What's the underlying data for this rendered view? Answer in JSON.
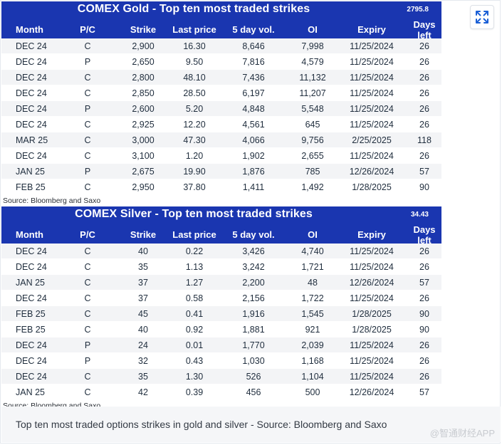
{
  "gold": {
    "title": "COMEX Gold - Top ten most traded strikes",
    "price": "2795.8",
    "headers": [
      "Month",
      "P/C",
      "Strike",
      "Last price",
      "5 day vol.",
      "OI",
      "Expiry",
      "Days left"
    ],
    "rows": [
      [
        "DEC 24",
        "C",
        "2,900",
        "16.30",
        "8,646",
        "7,998",
        "11/25/2024",
        "26"
      ],
      [
        "DEC 24",
        "P",
        "2,650",
        "9.50",
        "7,816",
        "4,579",
        "11/25/2024",
        "26"
      ],
      [
        "DEC 24",
        "C",
        "2,800",
        "48.10",
        "7,436",
        "11,132",
        "11/25/2024",
        "26"
      ],
      [
        "DEC 24",
        "C",
        "2,850",
        "28.50",
        "6,197",
        "11,207",
        "11/25/2024",
        "26"
      ],
      [
        "DEC 24",
        "P",
        "2,600",
        "5.20",
        "4,848",
        "5,548",
        "11/25/2024",
        "26"
      ],
      [
        "DEC 24",
        "C",
        "2,925",
        "12.20",
        "4,561",
        "645",
        "11/25/2024",
        "26"
      ],
      [
        "MAR 25",
        "C",
        "3,000",
        "47.30",
        "4,066",
        "9,756",
        "2/25/2025",
        "118"
      ],
      [
        "DEC 24",
        "C",
        "3,100",
        "1.20",
        "1,902",
        "2,655",
        "11/25/2024",
        "26"
      ],
      [
        "JAN 25",
        "P",
        "2,675",
        "19.90",
        "1,876",
        "785",
        "12/26/2024",
        "57"
      ],
      [
        "FEB 25",
        "C",
        "2,950",
        "37.80",
        "1,411",
        "1,492",
        "1/28/2025",
        "90"
      ]
    ],
    "source": "Source: Bloomberg and Saxo"
  },
  "silver": {
    "title": "COMEX Silver - Top ten most traded strikes",
    "price": "34.43",
    "headers": [
      "Month",
      "P/C",
      "Strike",
      "Last price",
      "5 day vol.",
      "OI",
      "Expiry",
      "Days left"
    ],
    "rows": [
      [
        "DEC 24",
        "C",
        "40",
        "0.22",
        "3,426",
        "4,740",
        "11/25/2024",
        "26"
      ],
      [
        "DEC 24",
        "C",
        "35",
        "1.13",
        "3,242",
        "1,721",
        "11/25/2024",
        "26"
      ],
      [
        "JAN 25",
        "C",
        "37",
        "1.27",
        "2,200",
        "48",
        "12/26/2024",
        "57"
      ],
      [
        "DEC 24",
        "C",
        "37",
        "0.58",
        "2,156",
        "1,722",
        "11/25/2024",
        "26"
      ],
      [
        "FEB 25",
        "C",
        "45",
        "0.41",
        "1,916",
        "1,545",
        "1/28/2025",
        "90"
      ],
      [
        "FEB 25",
        "C",
        "40",
        "0.92",
        "1,881",
        "921",
        "1/28/2025",
        "90"
      ],
      [
        "DEC 24",
        "P",
        "24",
        "0.01",
        "1,770",
        "2,039",
        "11/25/2024",
        "26"
      ],
      [
        "DEC 24",
        "P",
        "32",
        "0.43",
        "1,030",
        "1,168",
        "11/25/2024",
        "26"
      ],
      [
        "DEC 24",
        "C",
        "35",
        "1.30",
        "526",
        "1,104",
        "11/25/2024",
        "26"
      ],
      [
        "JAN 25",
        "C",
        "42",
        "0.39",
        "456",
        "500",
        "12/26/2024",
        "57"
      ]
    ],
    "source": "Source: Bloomberg and Saxo"
  },
  "caption": "Top ten most traded options strikes in gold and silver - Source: Bloomberg and Saxo",
  "watermark": "@智通财经APP",
  "expand_icon": "expand-arrows-icon",
  "colors": {
    "header_bg": "#1a36b0",
    "row_alt": "#f3f4f6"
  }
}
